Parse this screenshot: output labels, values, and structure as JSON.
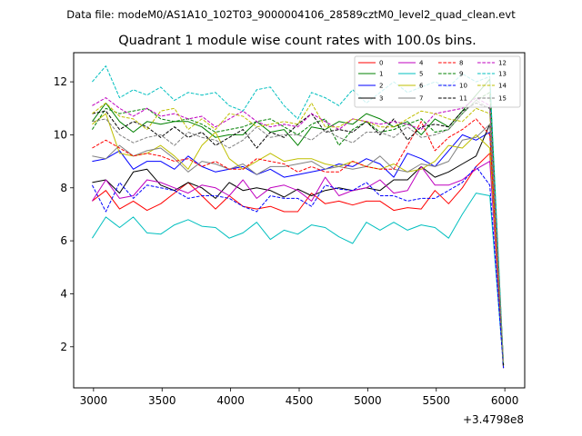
{
  "figure": {
    "suptitle": "Data file: modeM0/AS1A10_102T03_9000004106_28589cztM0_level2_quad_clean.evt"
  },
  "chart_data": {
    "type": "line",
    "title": "Quadrant 1 module wise count rates with 100.0s bins.",
    "xlabel": "",
    "ylabel": "",
    "x_offset_label": "+3.4798e8",
    "xlim": [
      2855,
      6145
    ],
    "ylim": [
      0.45,
      13.1
    ],
    "xticks": [
      3000,
      3500,
      4000,
      4500,
      5000,
      5500,
      6000
    ],
    "yticks": [
      2,
      4,
      6,
      8,
      10,
      12
    ],
    "grid": false,
    "legend_position": "top-right",
    "x": [
      2990,
      3090,
      3190,
      3290,
      3390,
      3490,
      3590,
      3690,
      3790,
      3890,
      3990,
      4090,
      4190,
      4290,
      4390,
      4490,
      4590,
      4690,
      4790,
      4890,
      4990,
      5090,
      5190,
      5290,
      5390,
      5490,
      5590,
      5690,
      5790,
      5890,
      5990
    ],
    "series": [
      {
        "name": "0",
        "color": "#ff0000",
        "dash": "solid",
        "values": [
          7.5,
          7.9,
          7.2,
          7.5,
          7.15,
          7.4,
          7.8,
          8.2,
          7.7,
          7.2,
          7.7,
          7.3,
          7.2,
          7.3,
          7.1,
          7.1,
          7.8,
          7.4,
          7.5,
          7.35,
          7.5,
          7.5,
          7.15,
          7.25,
          7.2,
          7.9,
          7.4,
          8.0,
          8.8,
          9.3,
          1.2
        ]
      },
      {
        "name": "1",
        "color": "#008000",
        "dash": "solid",
        "values": [
          10.5,
          11.2,
          10.5,
          10.1,
          10.5,
          10.4,
          10.5,
          10.5,
          10.3,
          9.9,
          10.0,
          10.0,
          10.5,
          10.1,
          10.2,
          9.6,
          10.3,
          10.2,
          10.5,
          10.4,
          10.8,
          10.6,
          10.3,
          10.5,
          10.0,
          10.6,
          10.3,
          10.9,
          11.5,
          12.1,
          1.3
        ]
      },
      {
        "name": "2",
        "color": "#0000ff",
        "dash": "solid",
        "values": [
          9.0,
          9.1,
          9.4,
          8.7,
          9.0,
          9.0,
          8.7,
          9.2,
          8.8,
          8.6,
          8.7,
          8.8,
          8.5,
          8.7,
          8.4,
          8.5,
          8.6,
          8.7,
          8.9,
          8.8,
          9.1,
          8.9,
          8.4,
          9.3,
          9.1,
          8.8,
          9.4,
          10.0,
          9.8,
          10.1,
          1.2
        ]
      },
      {
        "name": "3",
        "color": "#000000",
        "dash": "solid",
        "values": [
          8.2,
          8.3,
          7.8,
          8.6,
          8.7,
          8.1,
          7.9,
          8.2,
          8.0,
          7.6,
          8.2,
          7.9,
          8.0,
          7.9,
          7.65,
          7.95,
          7.7,
          7.9,
          8.0,
          7.9,
          8.0,
          7.9,
          8.3,
          8.3,
          8.8,
          8.4,
          8.6,
          8.9,
          9.2,
          10.4,
          1.2
        ]
      },
      {
        "name": "4",
        "color": "#bf00bf",
        "dash": "solid",
        "values": [
          7.5,
          8.3,
          7.6,
          7.7,
          8.3,
          8.2,
          8.0,
          7.8,
          8.1,
          8.0,
          7.7,
          8.3,
          7.6,
          8.0,
          8.1,
          7.9,
          7.5,
          8.4,
          7.7,
          7.9,
          8.0,
          8.3,
          7.8,
          7.9,
          8.8,
          8.1,
          8.1,
          8.3,
          8.7,
          9.0,
          1.3
        ]
      },
      {
        "name": "5",
        "color": "#00bfbf",
        "dash": "solid",
        "values": [
          6.1,
          6.9,
          6.5,
          6.9,
          6.3,
          6.25,
          6.6,
          6.8,
          6.55,
          6.5,
          6.1,
          6.3,
          6.7,
          6.05,
          6.4,
          6.25,
          6.6,
          6.5,
          6.15,
          5.9,
          6.7,
          6.4,
          6.7,
          6.4,
          6.6,
          6.5,
          6.1,
          7.0,
          7.8,
          7.7,
          1.3
        ]
      },
      {
        "name": "6",
        "color": "#bfbf00",
        "dash": "solid",
        "values": [
          10.4,
          10.8,
          9.3,
          9.2,
          9.3,
          9.6,
          9.2,
          8.7,
          9.6,
          10.1,
          9.1,
          8.7,
          9.0,
          9.3,
          9.0,
          9.1,
          9.1,
          8.9,
          8.8,
          9.0,
          8.8,
          8.7,
          8.9,
          8.6,
          8.7,
          9.0,
          9.6,
          9.5,
          10.0,
          9.5,
          1.4
        ]
      },
      {
        "name": "7",
        "color": "#808080",
        "dash": "solid",
        "values": [
          9.2,
          9.1,
          9.6,
          9.2,
          9.4,
          9.5,
          9.1,
          8.6,
          9.0,
          8.9,
          8.7,
          8.9,
          8.5,
          8.8,
          8.8,
          8.9,
          9.0,
          8.7,
          8.8,
          8.7,
          8.8,
          9.2,
          8.7,
          8.6,
          8.9,
          8.8,
          9.0,
          9.8,
          9.9,
          10.4,
          1.3
        ]
      },
      {
        "name": "8",
        "color": "#ff0000",
        "dash": "dashed",
        "values": [
          9.5,
          9.8,
          9.5,
          9.2,
          9.3,
          9.2,
          9.0,
          9.1,
          8.8,
          9.0,
          8.7,
          8.7,
          9.1,
          9.0,
          8.9,
          8.6,
          8.8,
          8.6,
          8.6,
          9.0,
          8.8,
          8.7,
          8.7,
          9.6,
          10.5,
          9.4,
          9.9,
          10.2,
          10.6,
          10.0,
          1.3
        ]
      },
      {
        "name": "9",
        "color": "#008000",
        "dash": "dashed",
        "values": [
          10.2,
          11.0,
          10.8,
          10.9,
          11.0,
          10.6,
          10.5,
          10.6,
          10.4,
          10.1,
          10.2,
          10.3,
          10.5,
          10.6,
          10.3,
          10.0,
          10.4,
          10.6,
          9.6,
          10.2,
          10.5,
          10.1,
          10.2,
          10.4,
          10.6,
          10.1,
          10.2,
          10.8,
          11.3,
          11.6,
          1.3
        ]
      },
      {
        "name": "10",
        "color": "#0000ff",
        "dash": "dashed",
        "values": [
          8.1,
          7.1,
          8.2,
          7.6,
          8.1,
          8.0,
          7.9,
          7.6,
          7.7,
          7.7,
          7.6,
          7.3,
          7.1,
          7.7,
          7.6,
          7.6,
          7.3,
          8.1,
          7.95,
          7.9,
          8.2,
          7.7,
          7.7,
          7.5,
          7.6,
          7.6,
          7.9,
          8.2,
          8.8,
          8.1,
          1.2
        ]
      },
      {
        "name": "11",
        "color": "#000000",
        "dash": "dashed",
        "values": [
          10.8,
          10.9,
          10.2,
          10.5,
          10.3,
          9.9,
          10.3,
          9.9,
          10.1,
          9.6,
          9.9,
          10.2,
          9.5,
          10.1,
          9.9,
          10.4,
          10.8,
          10.1,
          10.2,
          10.1,
          10.5,
          10.0,
          10.6,
          9.8,
          10.3,
          10.4,
          10.3,
          10.9,
          11.2,
          11.0,
          1.3
        ]
      },
      {
        "name": "12",
        "color": "#bf00bf",
        "dash": "dashed",
        "values": [
          11.1,
          11.4,
          11.0,
          10.7,
          11.0,
          10.7,
          10.8,
          10.6,
          10.7,
          10.3,
          10.6,
          10.9,
          10.5,
          10.3,
          10.4,
          10.3,
          10.8,
          10.5,
          10.2,
          10.6,
          10.5,
          10.4,
          10.5,
          10.4,
          10.2,
          10.8,
          10.9,
          11.0,
          11.4,
          11.1,
          1.4
        ]
      },
      {
        "name": "13",
        "color": "#00bfbf",
        "dash": "dashed",
        "values": [
          12.0,
          12.6,
          11.4,
          11.7,
          11.5,
          11.8,
          11.3,
          11.6,
          11.5,
          11.6,
          11.1,
          10.9,
          11.7,
          11.8,
          11.1,
          10.6,
          11.6,
          11.4,
          11.1,
          11.7,
          11.2,
          11.6,
          12.0,
          11.6,
          11.8,
          12.0,
          11.8,
          12.3,
          12.0,
          12.2,
          1.4
        ]
      },
      {
        "name": "14",
        "color": "#bfbf00",
        "dash": "dashed",
        "values": [
          10.8,
          11.2,
          10.7,
          10.6,
          10.2,
          10.9,
          11.0,
          10.2,
          10.6,
          10.2,
          10.8,
          10.7,
          10.3,
          10.4,
          10.5,
          10.4,
          11.2,
          10.3,
          10.3,
          10.6,
          10.5,
          10.3,
          10.3,
          10.6,
          10.9,
          10.8,
          10.6,
          10.5,
          11.0,
          10.8,
          1.4
        ]
      },
      {
        "name": "15",
        "color": "#808080",
        "dash": "dashed",
        "values": [
          10.5,
          10.6,
          10.0,
          9.7,
          9.9,
          10.0,
          9.6,
          10.1,
          9.9,
          9.8,
          9.5,
          9.8,
          10.3,
          9.9,
          10.0,
          10.0,
          9.8,
          10.2,
          9.9,
          9.7,
          10.1,
          10.1,
          9.9,
          10.3,
          9.9,
          10.0,
          10.2,
          10.8,
          11.3,
          11.0,
          1.4
        ]
      }
    ]
  }
}
